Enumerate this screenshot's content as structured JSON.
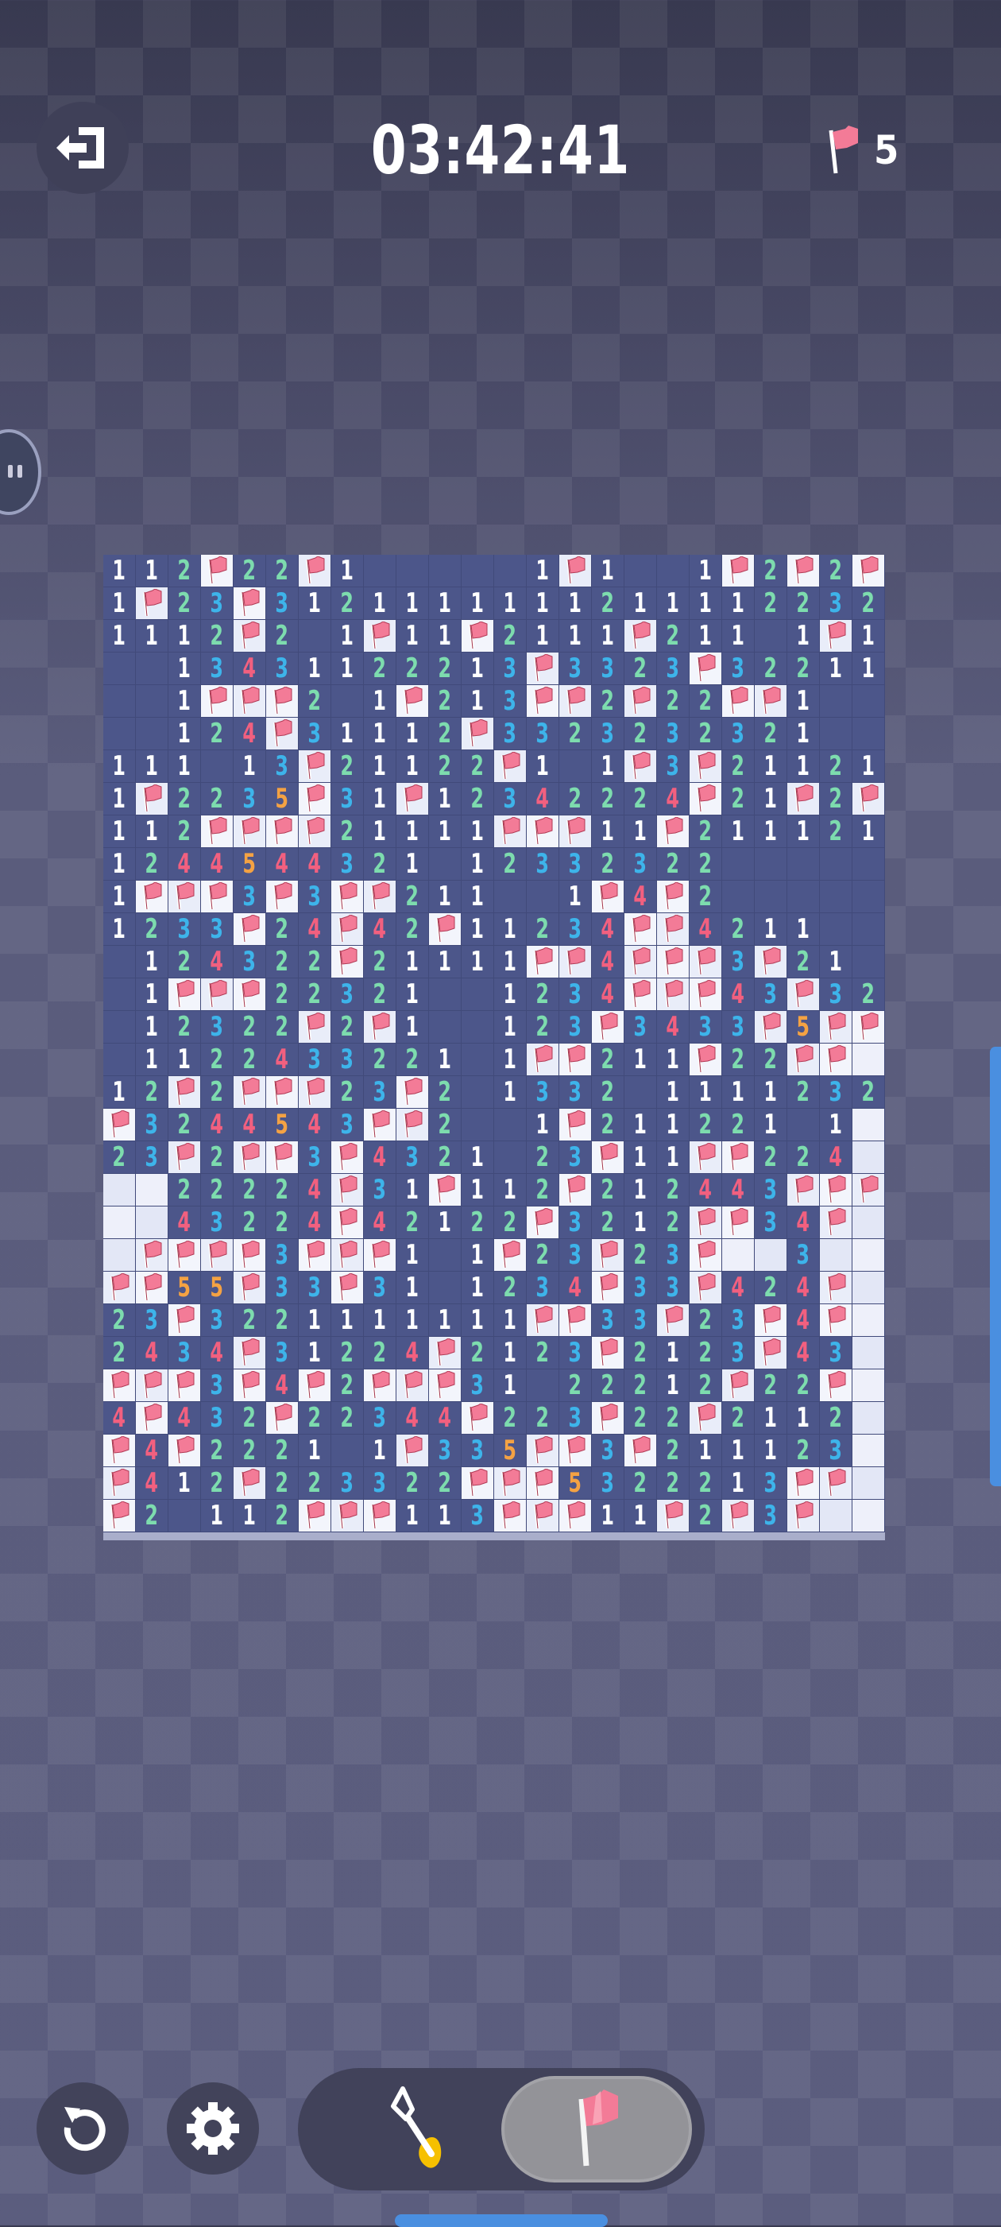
{
  "header": {
    "timer": "03:42:41",
    "flags_remaining": "5",
    "exit_icon": "exit-door-icon",
    "flag_icon": "flag-icon"
  },
  "colors": {
    "1": "#ffffff",
    "2": "#7ddcae",
    "3": "#3db4ea",
    "4": "#f2607f",
    "5": "#f4a243",
    "flag": "#f37b97",
    "accent": "#4a8fe0"
  },
  "board": {
    "columns": 24,
    "rows_count": 30,
    "legend": {
      ".": "revealed-empty",
      "F": "flagged",
      "#": "unrevealed",
      "1-5": "adjacent-mine-count"
    },
    "rows": [
      "112F22F1.....1F1..1F2F2F",
      "1F23F3121111111211112232",
      "1112F2.1F11F2111F211.1F1",
      "..13431122213F3323F32211",
      "..1FFF2.1F213FF2F22FF1..",
      "..124F31112F3323232321..",
      "111.13F21122F1.1F3F21121",
      "1F2235F31F12342224F21F2F",
      "112FFFF21111FFF11F211121",
      "1244544321.12332322.....",
      "1FFF3F3FF211..1F4F2.....",
      "1233F24F42F11234FF4211..",
      ".124322F21111FF4FFF3F21.",
      ".1FFF22321..1234FFF43F32",
      ".12322F2F1..123F3433F5FF",
      ".1122433221.1FF211F22FF#",
      "12F2FFF23F2.1332.1111232",
      "F3244543FF2..1F211221.1#",
      "23F2FF3F4321.23F11FF224#",
      "##22224F31F112F212443FFF",
      "##43224F42122F3212FF34F#",
      "#FFFF3FFF1.1F23F23F##3##",
      "FF55F33F31.1234F33F424F#",
      "23F3221111111FF33F23F4F#",
      "2434F31224F2123F2123F43#",
      "FFF3F4F2FFF31.22212F22F#",
      "4F432F22344F223F22F2112#",
      "F4F2221.1F335FF3F211123#",
      "F412F223322FFF5322213FF#",
      "F2.112FFF113FFF11F2F3F##"
    ]
  },
  "toolbar": {
    "undo_icon": "undo-icon",
    "settings_icon": "gear-icon",
    "dig_icon": "shovel-icon",
    "flag_mode_icon": "flag-icon",
    "selected_mode": "flag"
  }
}
